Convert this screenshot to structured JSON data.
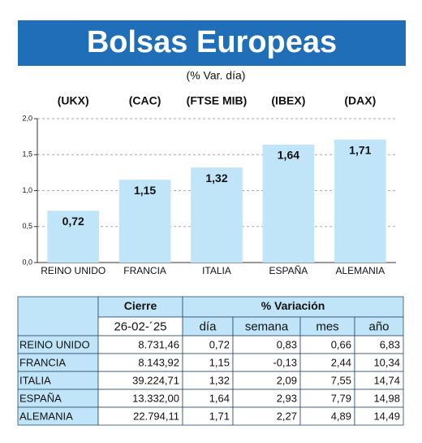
{
  "chart_data": {
    "type": "bar",
    "title": "Bolsas Europeas",
    "subtitle": "(% Var. día)",
    "index_labels": [
      "(UKX)",
      "(CAC)",
      "(FTSE MIB)",
      "(IBEX)",
      "(DAX)"
    ],
    "categories": [
      "REINO UNIDO",
      "FRANCIA",
      "ITALIA",
      "ESPAÑA",
      "ALEMANIA"
    ],
    "values": [
      0.72,
      1.15,
      1.32,
      1.64,
      1.71
    ],
    "value_labels": [
      "0,72",
      "1,15",
      "1,32",
      "1,64",
      "1,71"
    ],
    "color": "#c0e4f8",
    "ylim": [
      0,
      2
    ],
    "yticks": [
      {
        "value": 0,
        "label": "0,0"
      },
      {
        "value": 0.5,
        "label": "0,5"
      },
      {
        "value": 1,
        "label": "1,0"
      },
      {
        "value": 1.5,
        "label": "1,5"
      },
      {
        "value": 2,
        "label": "2,0"
      }
    ],
    "grid": true
  },
  "table": {
    "group_headers": [
      "Cierre",
      "% Variación"
    ],
    "sub_headers": [
      "26-02-´25",
      "día",
      "semana",
      "mes",
      "año"
    ],
    "rows": [
      [
        "REINO UNIDO",
        "8.731,46",
        "0,72",
        "0,83",
        "0,66",
        "6,83"
      ],
      [
        "FRANCIA",
        "8.143,92",
        "1,15",
        "-0,13",
        "2,44",
        "10,34"
      ],
      [
        "ITALIA",
        "39.224,71",
        "1,32",
        "2,09",
        "7,55",
        "14,74"
      ],
      [
        "ESPAÑA",
        "13.332,00",
        "1,64",
        "2,93",
        "7,79",
        "14,98"
      ],
      [
        "ALEMANIA",
        "22.794,11",
        "1,71",
        "2,27",
        "4,89",
        "14,49"
      ]
    ]
  }
}
